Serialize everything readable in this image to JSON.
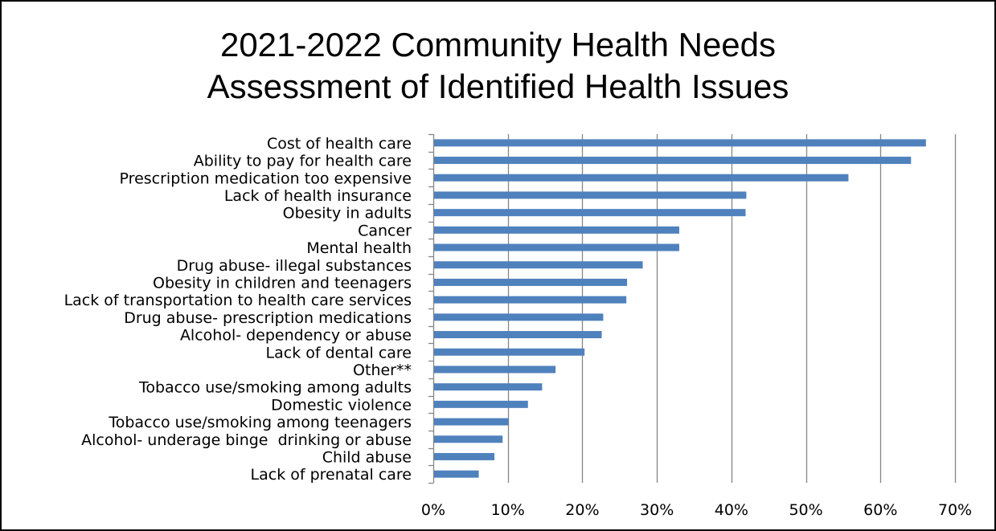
{
  "chart_data": {
    "type": "bar",
    "orientation": "horizontal",
    "title": [
      "2021-2022 Community Health Needs",
      "Assessment of Identified Health Issues"
    ],
    "categories": [
      "Cost of health care",
      "Ability to pay for health care",
      "Prescription medication too expensive",
      "Lack of health insurance",
      "Obesity in adults",
      "Cancer",
      "Mental health",
      "Drug abuse- illegal substances",
      "Obesity in children and teenagers",
      "Lack of transportation to health care services",
      "Drug abuse- prescription medications",
      "Alcohol- dependency or abuse",
      "Lack of dental care",
      "Other**",
      "Tobacco use/smoking among adults",
      "Domestic violence",
      "Tobacco use/smoking among teenagers",
      "Alcohol- underage binge  drinking or abuse",
      "Child abuse",
      "Lack of prenatal care"
    ],
    "values": [
      66.1,
      64.1,
      55.7,
      42.0,
      41.9,
      33.0,
      33.0,
      28.1,
      26.0,
      25.9,
      22.8,
      22.6,
      20.3,
      16.4,
      14.6,
      12.7,
      10.1,
      9.3,
      8.2,
      6.1
    ],
    "xlim": [
      0,
      70
    ],
    "x_ticks": [
      0,
      10,
      20,
      30,
      40,
      50,
      60,
      70
    ],
    "x_tick_labels": [
      "0%",
      "10%",
      "20%",
      "30%",
      "40%",
      "50%",
      "60%",
      "70%"
    ],
    "xlabel": "",
    "ylabel": "",
    "grid": "vertical major gridlines",
    "legend": "none",
    "bar_color": "#4F81BD",
    "grid_color": "#868686"
  }
}
